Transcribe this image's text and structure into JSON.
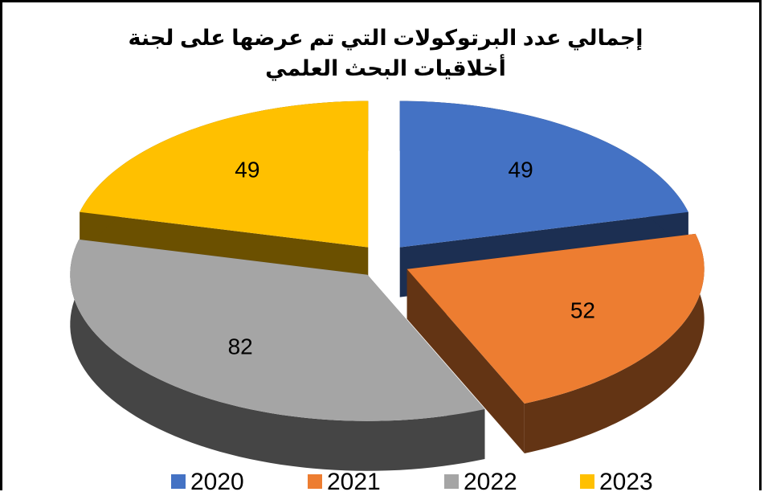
{
  "chart_data": {
    "type": "pie3d",
    "title": "إجمالي عدد البرتوكولات التي تم عرضها على لجنة أخلاقيات البحث العلمي",
    "categories": [
      "2020",
      "2021",
      "2022",
      "2023"
    ],
    "values": [
      49,
      52,
      82,
      49
    ],
    "colors": [
      "#4472c4",
      "#ed7d31",
      "#a5a5a5",
      "#ffc000"
    ],
    "legend": "bottom"
  }
}
